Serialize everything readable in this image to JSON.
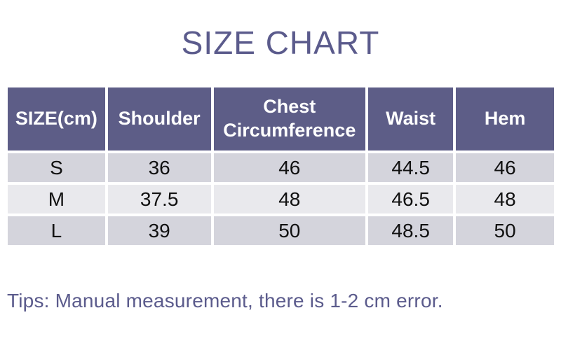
{
  "title": "SIZE CHART",
  "chart_data": {
    "type": "table",
    "title": "SIZE CHART",
    "columns": [
      "SIZE(cm)",
      "Shoulder",
      "Chest Circumference",
      "Waist",
      "Hem"
    ],
    "rows": [
      [
        "S",
        "36",
        "46",
        "44.5",
        "46"
      ],
      [
        "M",
        "37.5",
        "48",
        "46.5",
        "48"
      ],
      [
        "L",
        "39",
        "50",
        "48.5",
        "50"
      ]
    ]
  },
  "tips": "Tips: Manual measurement, there is 1-2 cm error.",
  "colors": {
    "accent_text": "#5b5b8c",
    "header_bg": "#5d5d87",
    "header_text": "#ffffff",
    "row_odd_bg": "#d4d4dc",
    "row_even_bg": "#e9e9ed",
    "cell_text": "#111111"
  }
}
